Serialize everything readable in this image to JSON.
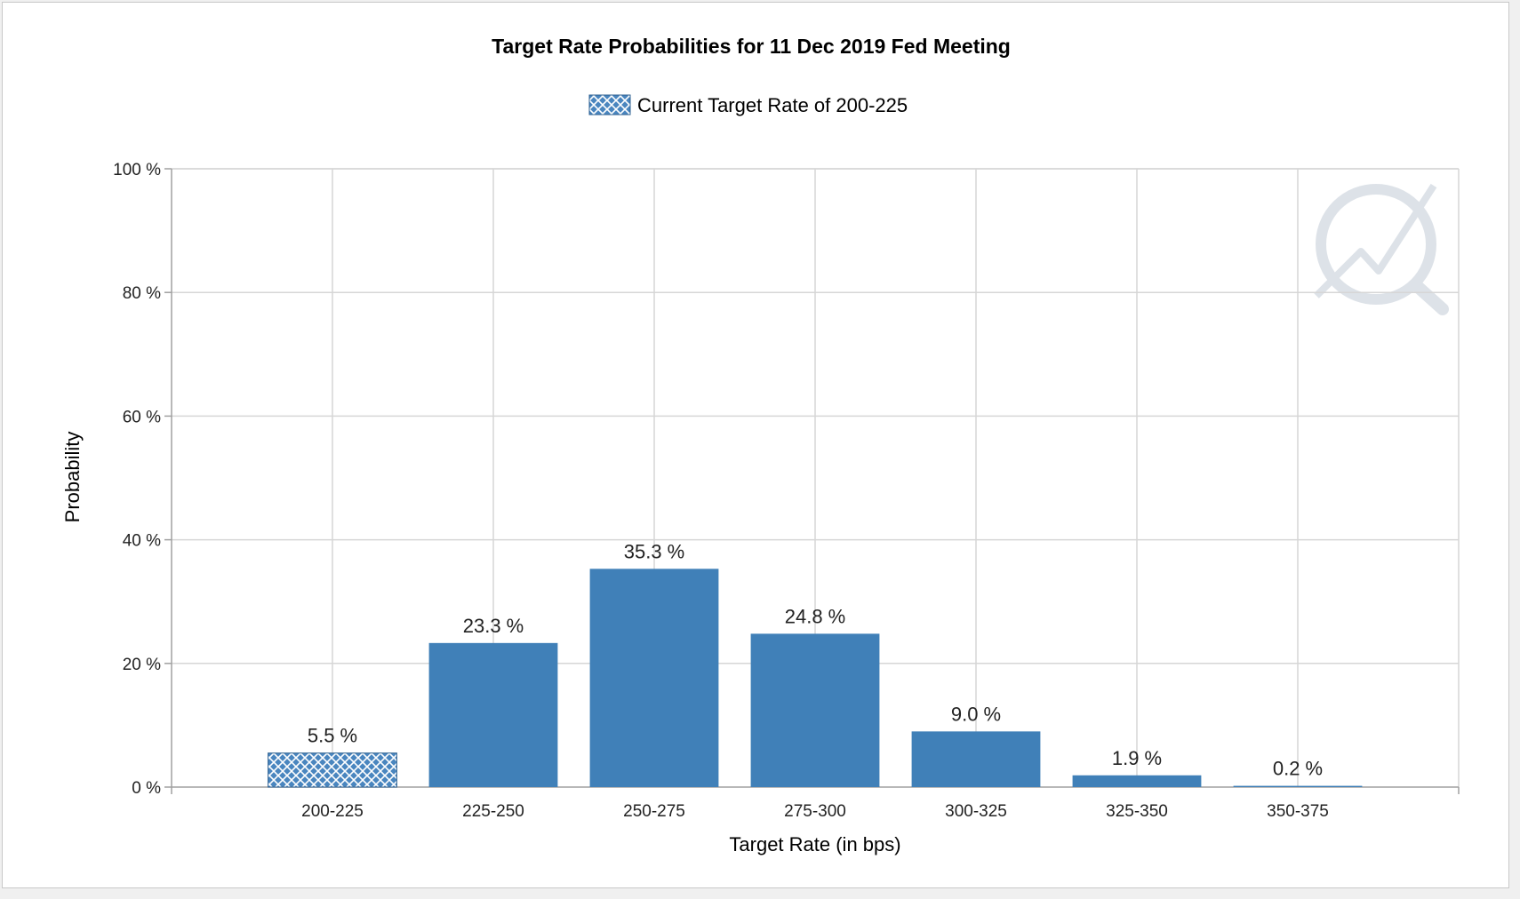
{
  "chart_data": {
    "type": "bar",
    "title": "Target Rate Probabilities for 11 Dec 2019 Fed Meeting",
    "legend": {
      "label": "Current Target Rate of 200-225",
      "placement": "top-center"
    },
    "xlabel": "Target Rate (in bps)",
    "ylabel": "Probability",
    "categories": [
      "200-225",
      "225-250",
      "250-275",
      "275-300",
      "300-325",
      "325-350",
      "350-375"
    ],
    "values": [
      5.5,
      23.3,
      35.3,
      24.8,
      9.0,
      1.9,
      0.2
    ],
    "data_labels": [
      "5.5 %",
      "23.3 %",
      "35.3 %",
      "24.8 %",
      "9.0 %",
      "1.9 %",
      "0.2 %"
    ],
    "current_category": "200-225",
    "ylim": [
      0,
      100
    ],
    "yticks": [
      0,
      20,
      40,
      60,
      80,
      100
    ],
    "ytick_labels": [
      "0 %",
      "20 %",
      "40 %",
      "60 %",
      "80 %",
      "100 %"
    ],
    "grid": true,
    "colors": {
      "bar": "#4080b8",
      "current_hatch_bg": "#4a86bf",
      "hatch_lines": "#ffffff",
      "grid": "#d6d6d6",
      "axis": "#a0a0a0"
    }
  },
  "watermark": {
    "icon": "quikstrike-logo-icon"
  }
}
